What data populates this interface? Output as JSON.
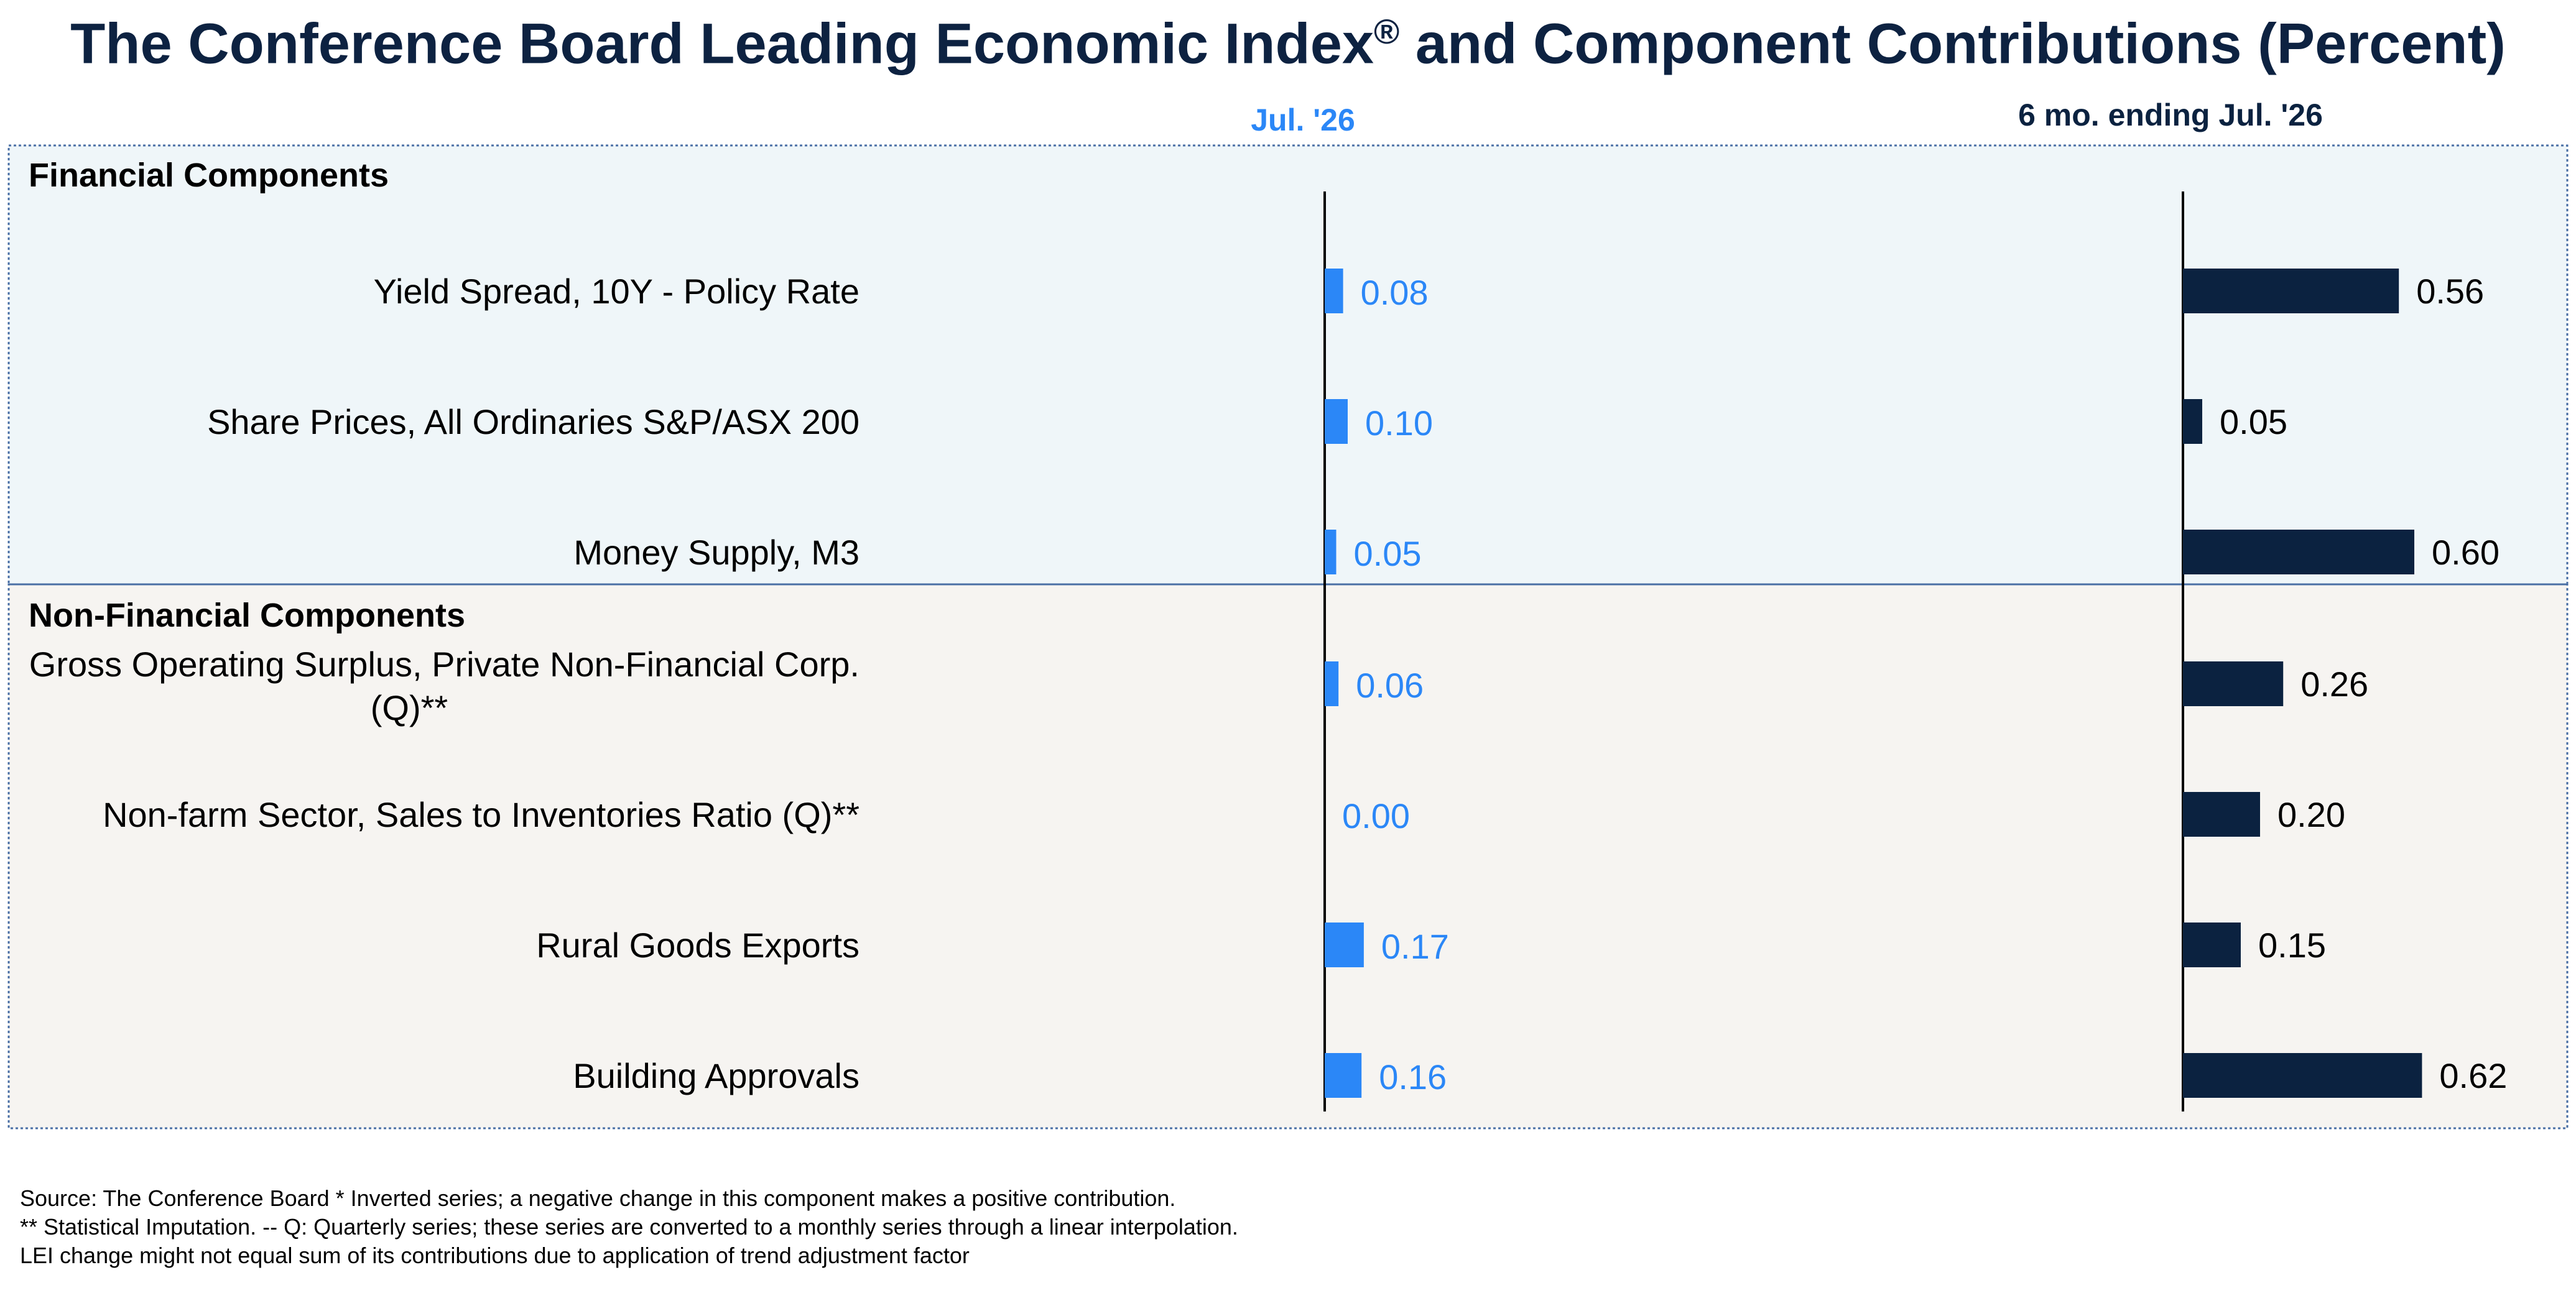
{
  "title": "The Conference Board Leading Economic Index",
  "title_mark": "®",
  "title_suffix": " and Component Contributions (Percent)",
  "colors": {
    "left_bar": "#2b87f7",
    "right_bar": "#0b2240",
    "financial_bg": "#eff6f9",
    "nonfinancial_bg": "#f6f4f1",
    "border": "#4a6fa5"
  },
  "chart_data": {
    "type": "bar",
    "orientation": "horizontal",
    "column_headers": [
      "Jul. '26",
      "6 mo. ending Jul. '26"
    ],
    "sections": [
      {
        "title": "Financial Components",
        "rows": [
          {
            "label": [
              "Yield Spread, 10Y - Policy Rate"
            ],
            "month": 0.08,
            "month_label": "0.08",
            "six_month": 0.56,
            "six_month_label": "0.56"
          },
          {
            "label": [
              "Share Prices, All Ordinaries S&P/ASX 200"
            ],
            "month": 0.1,
            "month_label": "0.10",
            "six_month": 0.05,
            "six_month_label": "0.05"
          },
          {
            "label": [
              "Money Supply, M3"
            ],
            "month": 0.05,
            "month_label": "0.05",
            "six_month": 0.6,
            "six_month_label": "0.60"
          }
        ]
      },
      {
        "title": "Non-Financial Components",
        "rows": [
          {
            "label": [
              "Gross Operating Surplus, Private Non-Financial Corp.",
              "(Q)**"
            ],
            "month": 0.06,
            "month_label": "0.06",
            "six_month": 0.26,
            "six_month_label": "0.26"
          },
          {
            "label": [
              "Non-farm Sector, Sales to Inventories Ratio (Q)**"
            ],
            "month": 0.0,
            "month_label": "0.00",
            "six_month": 0.2,
            "six_month_label": "0.20"
          },
          {
            "label": [
              "Rural Goods Exports"
            ],
            "month": 0.17,
            "month_label": "0.17",
            "six_month": 0.15,
            "six_month_label": "0.15"
          },
          {
            "label": [
              "Building Approvals"
            ],
            "month": 0.16,
            "month_label": "0.16",
            "six_month": 0.62,
            "six_month_label": "0.62"
          }
        ]
      }
    ]
  },
  "footnotes": [
    "Source: The Conference Board *  Inverted series; a negative change in this component makes a positive contribution.",
    "**  Statistical Imputation. -- Q: Quarterly series; these series are converted to a monthly series through a linear interpolation.",
    "LEI change might not equal sum of its contributions due to application of trend adjustment factor"
  ]
}
